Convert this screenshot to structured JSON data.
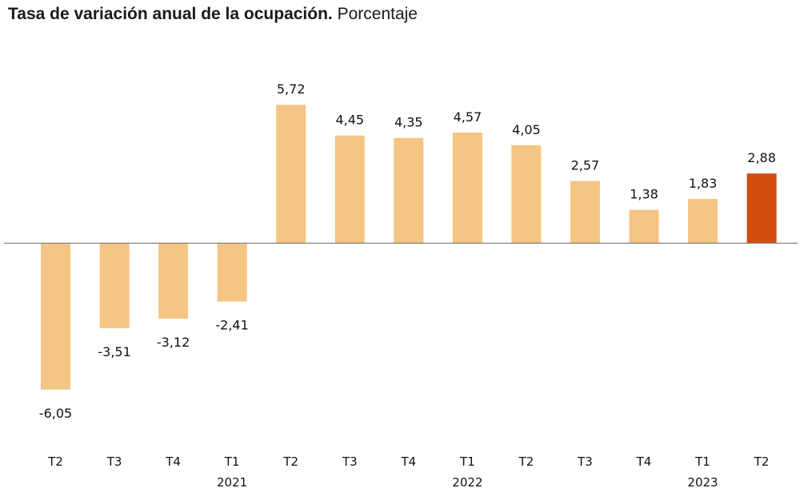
{
  "chart_data": {
    "type": "bar",
    "title": "Tasa de variación anual de la ocupación.",
    "subtitle": "Porcentaje",
    "categories": [
      "T2",
      "T3",
      "T4",
      "T1",
      "T2",
      "T3",
      "T4",
      "T1",
      "T2",
      "T3",
      "T4",
      "T1",
      "T2"
    ],
    "years": [
      {
        "label": "2021",
        "index": 3
      },
      {
        "label": "2022",
        "index": 7
      },
      {
        "label": "2023",
        "index": 11
      }
    ],
    "values": [
      -6.05,
      -3.51,
      -3.12,
      -2.41,
      5.72,
      4.45,
      4.35,
      4.57,
      4.05,
      2.57,
      1.38,
      1.83,
      2.88
    ],
    "value_labels": [
      "-6,05",
      "-3,51",
      "-3,12",
      "-2,41",
      "5,72",
      "4,45",
      "4,35",
      "4,57",
      "4,05",
      "2,57",
      "1,38",
      "1,83",
      "2,88"
    ],
    "highlight_index": 12,
    "ylim": [
      -6.05,
      5.72
    ],
    "colors": {
      "bar": "#f5c584",
      "highlight": "#d14d0f",
      "axis": "#808080"
    }
  }
}
